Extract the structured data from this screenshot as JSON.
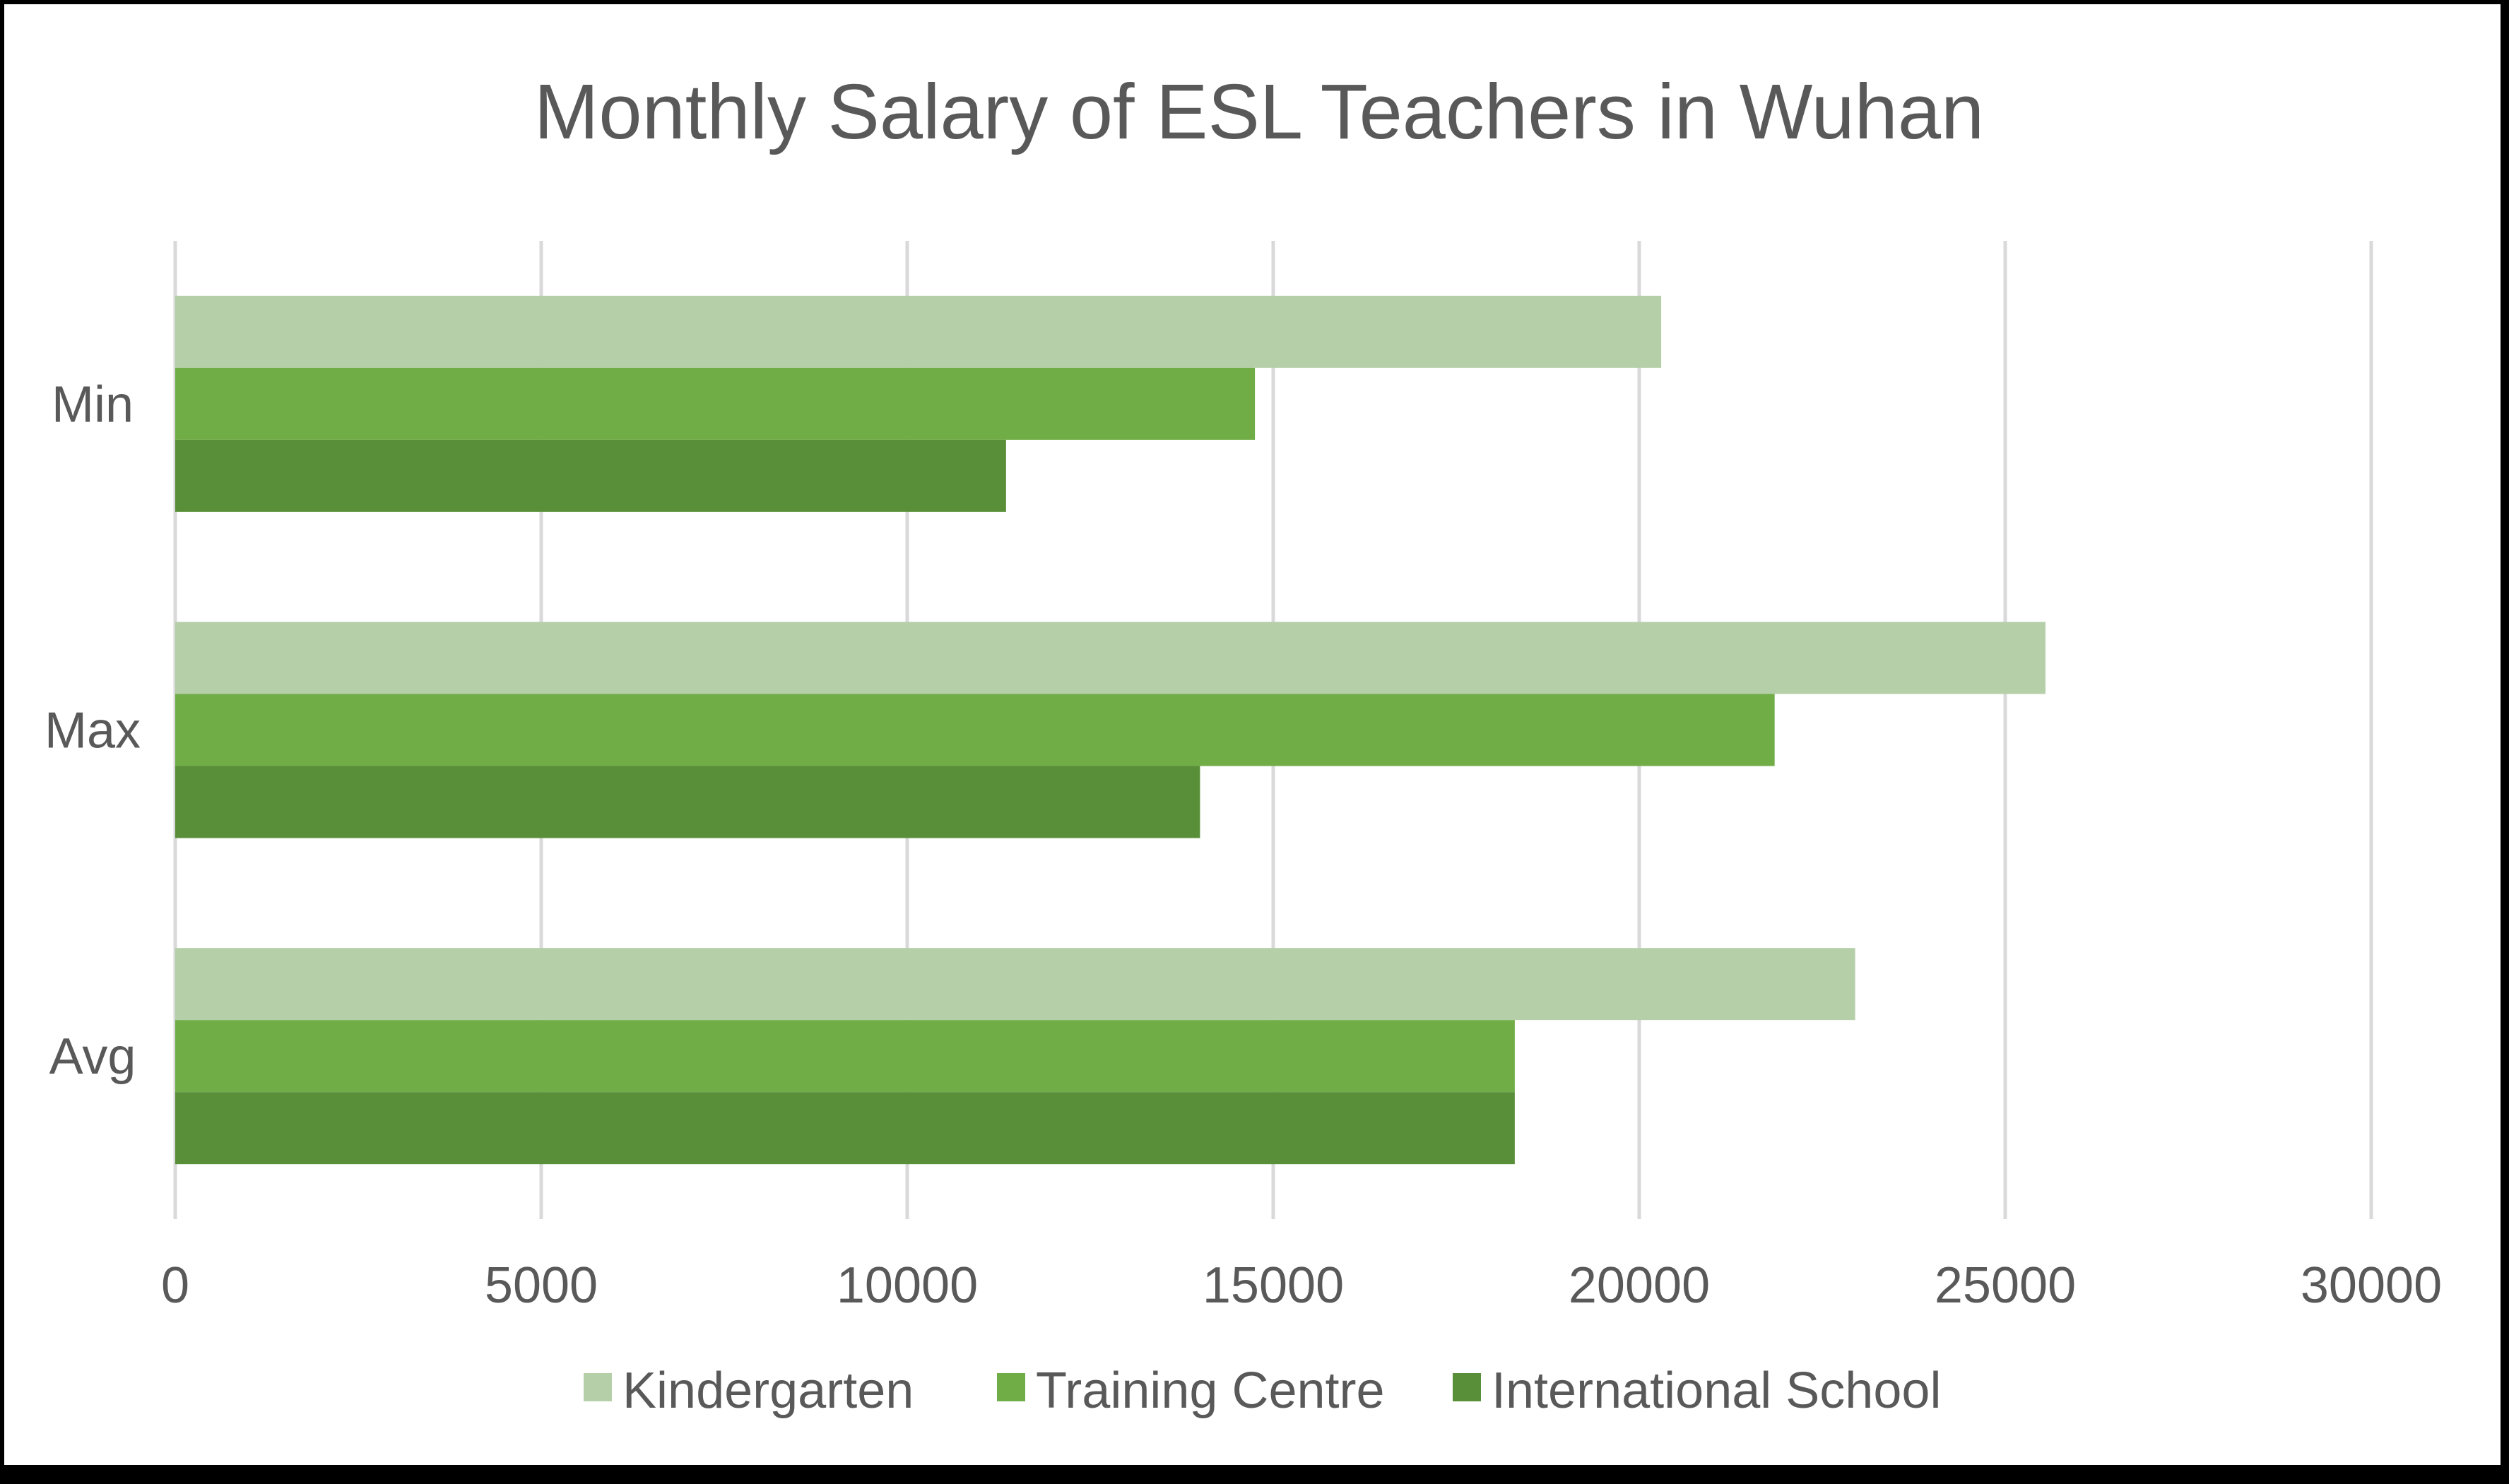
{
  "chart_data": {
    "type": "bar",
    "orientation": "horizontal",
    "title": "Monthly Salary of ESL Teachers in Wuhan",
    "categories": [
      "Min",
      "Max",
      "Avg"
    ],
    "series": [
      {
        "name": "Kindergarten",
        "color": "#b5cfa9",
        "values": [
          20300,
          25550,
          22950
        ]
      },
      {
        "name": "Training Centre",
        "color": "#70ad47",
        "values": [
          14750,
          21850,
          18300
        ]
      },
      {
        "name": "International School",
        "color": "#5a8f3a",
        "values": [
          11350,
          14000,
          18300
        ]
      }
    ],
    "xlim": [
      0,
      30000
    ],
    "x_ticks": [
      "0",
      "5000",
      "10000",
      "15000",
      "20000",
      "25000",
      "30000"
    ],
    "grid": true,
    "legend_position": "bottom"
  }
}
